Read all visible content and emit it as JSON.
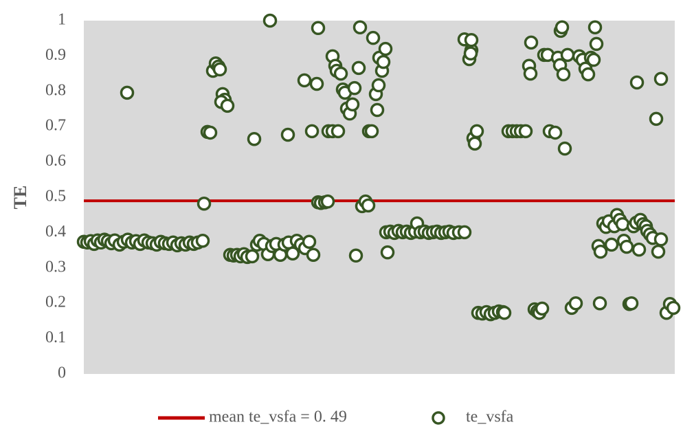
{
  "chart_data": {
    "type": "scatter",
    "ylabel": "TE",
    "xlim": [
      0,
      860
    ],
    "ylim": [
      0,
      1
    ],
    "yticks": [
      0,
      0.1,
      0.2,
      0.3,
      0.4,
      0.5,
      0.6,
      0.7,
      0.8,
      0.9,
      1
    ],
    "plot_background": "#d9d9d9",
    "mean_line": {
      "name": "mean te_vsfa = 0. 49",
      "value": 0.49,
      "color": "#c00000"
    },
    "x": [
      0,
      5,
      10,
      15,
      20,
      25,
      30,
      35,
      40,
      45,
      52,
      58,
      64,
      70,
      76,
      82,
      88,
      94,
      100,
      106,
      112,
      118,
      124,
      130,
      136,
      142,
      148,
      154,
      160,
      166,
      173,
      63,
      175,
      180,
      184,
      188,
      192,
      196,
      198,
      202,
      205,
      200,
      209,
      213,
      218,
      223,
      228,
      233,
      238,
      245,
      248,
      271,
      297,
      252,
      256,
      262,
      268,
      274,
      280,
      286,
      292,
      298,
      304,
      310,
      316,
      322,
      328,
      334,
      321,
      339,
      332,
      341,
      341,
      345,
      351,
      355,
      356,
      362,
      370,
      362,
      366,
      368,
      374,
      377,
      380,
      383,
      387,
      391,
      394,
      396,
      402,
      400,
      405,
      410,
      414,
      415,
      419,
      421,
      425,
      427,
      429,
      430,
      434,
      436,
      439,
      442,
      440,
      446,
      452,
      458,
      464,
      470,
      476,
      482,
      485,
      490,
      496,
      502,
      508,
      514,
      520,
      526,
      532,
      538,
      546,
      554,
      554,
      561,
      564,
      564,
      563,
      567,
      569,
      572,
      574,
      580,
      586,
      592,
      598,
      604,
      610,
      612,
      618,
      624,
      630,
      636,
      643,
      648,
      651,
      650,
      656,
      660,
      663,
      667,
      670,
      675,
      678,
      686,
      690,
      694,
      696,
      693,
      698,
      700,
      704,
      710,
      716,
      721,
      726,
      730,
      734,
      738,
      742,
      744,
      746,
      749,
      752,
      751,
      756,
      760,
      764,
      768,
      772,
      776,
      780,
      784,
      786,
      790,
      794,
      797,
      800,
      804,
      805,
      808,
      810,
      814,
      818,
      820,
      824,
      828,
      833,
      836,
      840,
      840,
      848,
      853,
      858
    ],
    "series": [
      {
        "name": "te_vsfa",
        "color": "#375623",
        "values": [
          0.374,
          0.372,
          0.376,
          0.368,
          0.378,
          0.372,
          0.38,
          0.376,
          0.37,
          0.378,
          0.366,
          0.374,
          0.38,
          0.372,
          0.376,
          0.368,
          0.378,
          0.372,
          0.37,
          0.366,
          0.374,
          0.37,
          0.368,
          0.372,
          0.364,
          0.37,
          0.366,
          0.372,
          0.368,
          0.372,
          0.377,
          0.796,
          0.482,
          0.685,
          0.683,
          0.858,
          0.879,
          0.87,
          0.862,
          0.792,
          0.776,
          0.77,
          0.759,
          0.337,
          0.335,
          0.337,
          0.333,
          0.339,
          0.331,
          0.333,
          0.665,
          1,
          0.677,
          0.366,
          0.377,
          0.368,
          0.339,
          0.362,
          0.368,
          0.337,
          0.366,
          0.372,
          0.341,
          0.377,
          0.366,
          0.356,
          0.374,
          0.337,
          0.831,
          0.821,
          0.687,
          0.979,
          0.486,
          0.484,
          0.486,
          0.488,
          0.687,
          0.687,
          0.687,
          0.899,
          0.872,
          0.858,
          0.85,
          0.805,
          0.796,
          0.751,
          0.737,
          0.763,
          0.809,
          0.335,
          0.981,
          0.866,
          0.475,
          0.488,
          0.477,
          0.687,
          0.687,
          0.951,
          0.792,
          0.747,
          0.817,
          0.895,
          0.858,
          0.883,
          0.92,
          0.344,
          0.401,
          0.403,
          0.399,
          0.405,
          0.401,
          0.403,
          0.399,
          0.403,
          0.426,
          0.401,
          0.403,
          0.399,
          0.401,
          0.403,
          0.399,
          0.401,
          0.403,
          0.399,
          0.401,
          0.401,
          0.947,
          0.891,
          0.916,
          0.945,
          0.907,
          0.667,
          0.652,
          0.687,
          0.173,
          0.171,
          0.175,
          0.169,
          0.173,
          0.177,
          0.175,
          0.173,
          0.687,
          0.687,
          0.687,
          0.687,
          0.687,
          0.872,
          0.938,
          0.85,
          0.183,
          0.177,
          0.173,
          0.185,
          0.903,
          0.903,
          0.687,
          0.683,
          0.895,
          0.971,
          0.981,
          0.874,
          0.848,
          0.638,
          0.903,
          0.187,
          0.2,
          0.899,
          0.889,
          0.864,
          0.848,
          0.895,
          0.889,
          0.981,
          0.934,
          0.362,
          0.346,
          0.2,
          0.426,
          0.416,
          0.432,
          0.366,
          0.418,
          0.45,
          0.436,
          0.424,
          0.377,
          0.36,
          0.198,
          0.2,
          0.418,
          0.428,
          0.825,
          0.352,
          0.436,
          0.424,
          0.418,
          0.405,
          0.395,
          0.385,
          0.722,
          0.346,
          0.835,
          0.381,
          0.173,
          0.198,
          0.187
        ]
      }
    ]
  }
}
